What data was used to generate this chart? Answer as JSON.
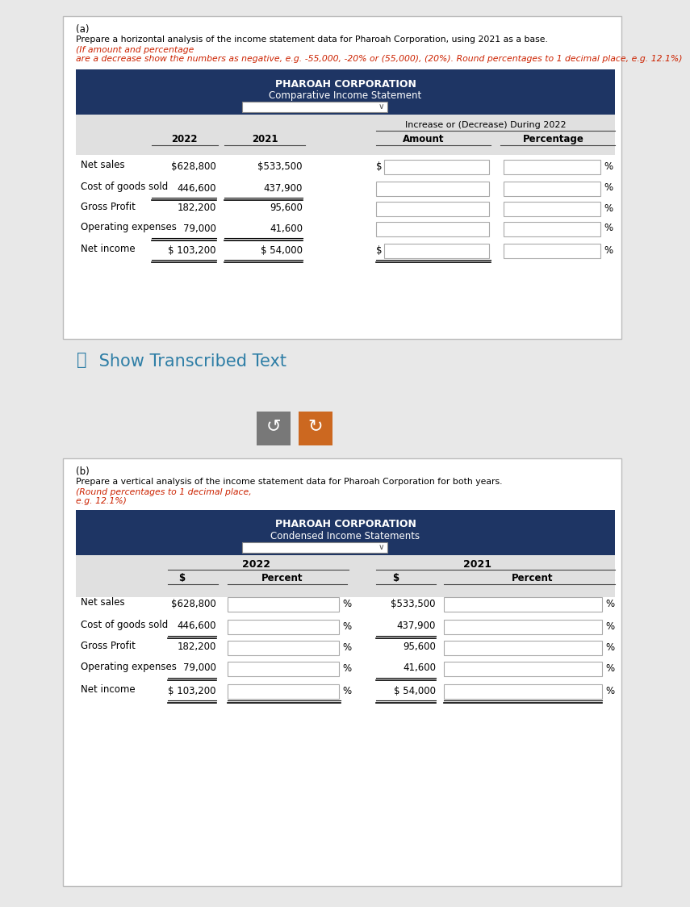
{
  "bg_color": "#e8e8e8",
  "dark_blue": "#1e3564",
  "light_gray": "#e8e8e8",
  "white": "#ffffff",
  "red_text": "#cc2200",
  "teal_color": "#2e7ea6",
  "gray_btn": "#787878",
  "orange_btn": "#cc6820",
  "black": "#000000",
  "border_gray": "#bbbbbb",
  "input_border": "#aaaaaa",
  "part_a_label": "(a)",
  "part_a_line1": "Prepare a horizontal analysis of the income statement data for Pharoah Corporation, using 2021 as a base.",
  "part_a_line2a": "(If amount and percentage",
  "part_a_line2b": "are a decrease show the numbers as negative, e.g. -55,000, -20% or (55,000), (20%). Round percentages to 1 decimal place, e.g. 12.1%)",
  "table_a_title1": "PHAROAH CORPORATION",
  "table_a_title2": "Comparative Income Statement",
  "span_header_a": "Increase or (Decrease) During 2022",
  "rows_a": [
    {
      "label": "Net sales",
      "val2022": "$628,800",
      "val2021": "$533,500",
      "dollar_amount": true,
      "ul2022": false,
      "ul2021": false,
      "ul_amt": false
    },
    {
      "label": "Cost of goods sold",
      "val2022": "446,600",
      "val2021": "437,900",
      "dollar_amount": false,
      "ul2022": true,
      "ul2021": true,
      "ul_amt": false
    },
    {
      "label": "Gross Profit",
      "val2022": "182,200",
      "val2021": "95,600",
      "dollar_amount": false,
      "ul2022": false,
      "ul2021": false,
      "ul_amt": false
    },
    {
      "label": "Operating expenses",
      "val2022": "79,000",
      "val2021": "41,600",
      "dollar_amount": false,
      "ul2022": true,
      "ul2021": true,
      "ul_amt": false
    },
    {
      "label": "Net income",
      "val2022": "$ 103,200",
      "val2021": "$ 54,000",
      "dollar_amount": true,
      "ul2022": true,
      "ul2021": true,
      "ul_amt": true
    }
  ],
  "show_transcribed_icon": "⦿",
  "show_transcribed_text": " Show Transcribed Text",
  "part_b_label": "(b)",
  "part_b_line1": "Prepare a vertical analysis of the income statement data for Pharoah Corporation for both years.",
  "part_b_line2a": "(Round percentages to 1 decimal place,",
  "part_b_line2b": "e.g. 12.1%)",
  "table_b_title1": "PHAROAH CORPORATION",
  "table_b_title2": "Condensed Income Statements",
  "rows_b": [
    {
      "label": "Net sales",
      "val2022": "$628,800",
      "val2021": "$533,500",
      "ul": false
    },
    {
      "label": "Cost of goods sold",
      "val2022": "446,600",
      "val2021": "437,900",
      "ul": true
    },
    {
      "label": "Gross Profit",
      "val2022": "182,200",
      "val2021": "95,600",
      "ul": false
    },
    {
      "label": "Operating expenses",
      "val2022": "79,000",
      "val2021": "41,600",
      "ul": true
    },
    {
      "label": "Net income",
      "val2022": "$ 103,200",
      "val2021": "$ 54,000",
      "ul": true
    }
  ]
}
